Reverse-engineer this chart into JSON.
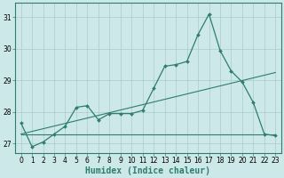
{
  "title": "",
  "xlabel": "Humidex (Indice chaleur)",
  "bg_color": "#cce8e8",
  "grid_color": "#aacccc",
  "line_color": "#2e7d6e",
  "spine_color": "#2e7d6e",
  "xlim": [
    -0.5,
    23.5
  ],
  "ylim": [
    26.7,
    31.45
  ],
  "yticks": [
    27,
    28,
    29,
    30,
    31
  ],
  "xticks": [
    0,
    1,
    2,
    3,
    4,
    5,
    6,
    7,
    8,
    9,
    10,
    11,
    12,
    13,
    14,
    15,
    16,
    17,
    18,
    19,
    20,
    21,
    22,
    23
  ],
  "main_x": [
    0,
    1,
    2,
    3,
    4,
    5,
    6,
    7,
    8,
    9,
    10,
    11,
    12,
    13,
    14,
    15,
    16,
    17,
    18,
    19,
    20,
    21,
    22,
    23
  ],
  "main_y": [
    27.65,
    26.9,
    27.05,
    27.3,
    27.55,
    28.15,
    28.2,
    27.75,
    27.95,
    27.95,
    27.95,
    28.05,
    28.75,
    29.45,
    29.5,
    29.6,
    30.45,
    31.1,
    29.95,
    29.3,
    28.95,
    28.3,
    27.3,
    27.25
  ],
  "line2_x": [
    0,
    23
  ],
  "line2_y": [
    27.3,
    29.25
  ],
  "line3_x": [
    0,
    14,
    23
  ],
  "line3_y": [
    27.3,
    27.3,
    27.3
  ],
  "tick_fontsize": 5.5,
  "label_fontsize": 7
}
